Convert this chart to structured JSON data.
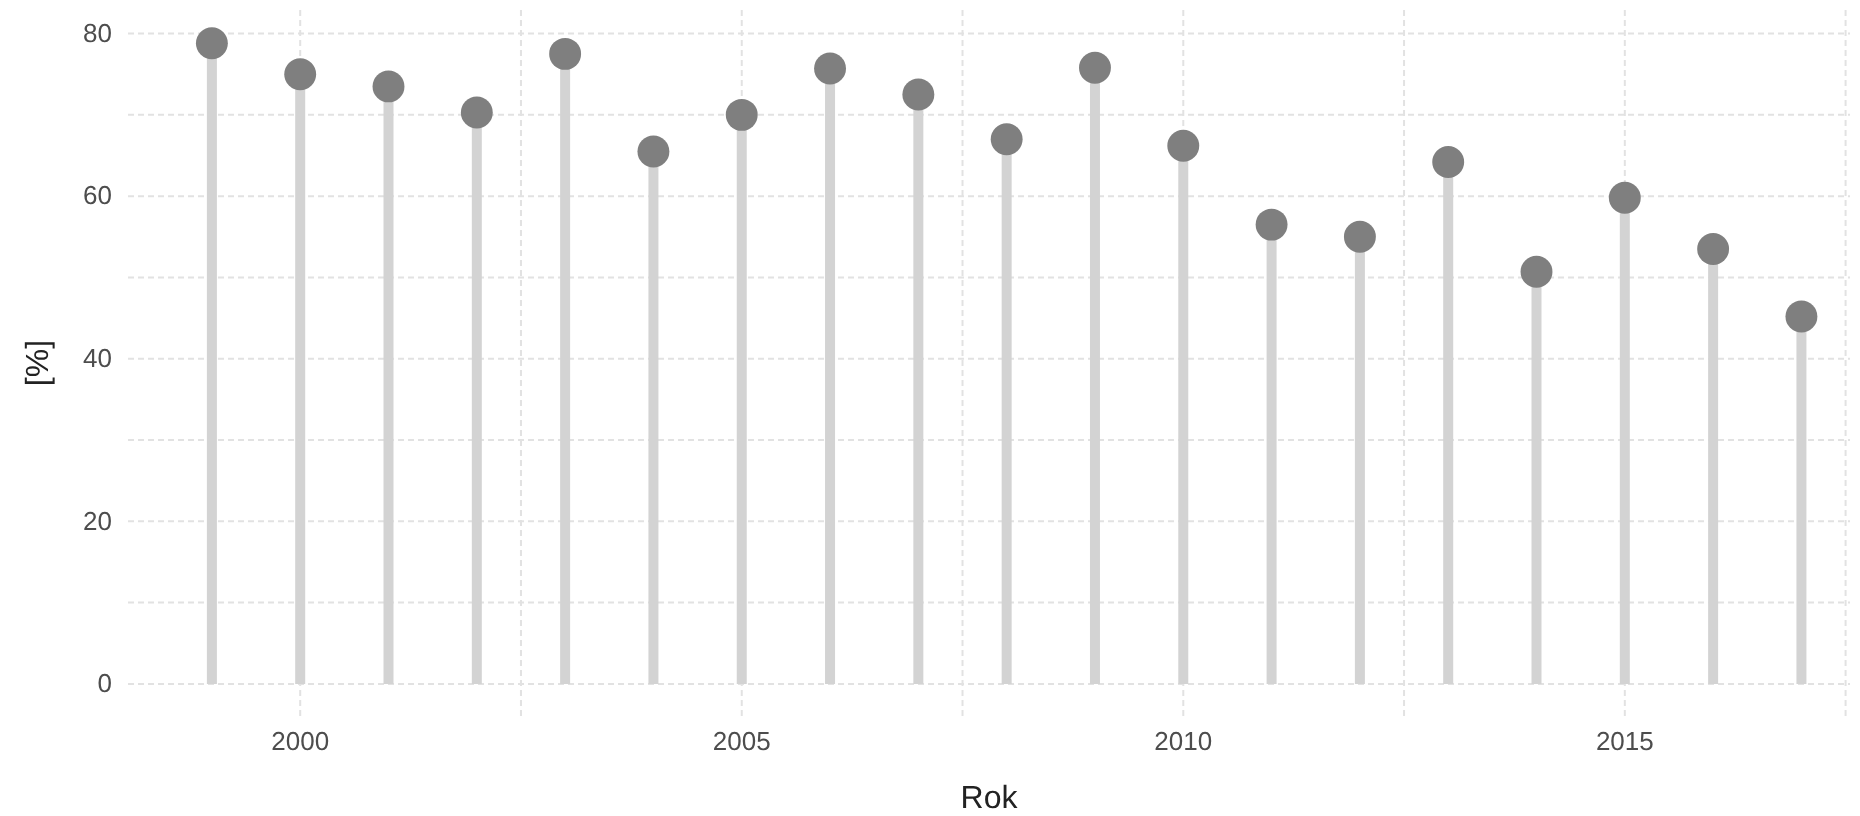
{
  "chart_data": {
    "type": "lollipop",
    "xlabel": "Rok",
    "ylabel": "[%]",
    "x": [
      1999,
      2000,
      2001,
      2002,
      2003,
      2004,
      2005,
      2006,
      2007,
      2008,
      2009,
      2010,
      2011,
      2012,
      2013,
      2014,
      2015,
      2016,
      2017
    ],
    "values": [
      78.8,
      75,
      73.5,
      70.3,
      77.5,
      65.5,
      70,
      75.7,
      72.5,
      67,
      75.8,
      66.2,
      56.5,
      55,
      64.2,
      50.7,
      59.8,
      53.5,
      45.2
    ],
    "color": "#7f7f7f",
    "xlim": [
      1998.05,
      2017.55
    ],
    "xticks": [
      2000,
      2005,
      2010,
      2015
    ],
    "ylim": [
      -3.95,
      82.9
    ],
    "yticks": [
      0,
      20,
      40,
      60,
      80
    ],
    "grid": true,
    "marker": "circle"
  }
}
